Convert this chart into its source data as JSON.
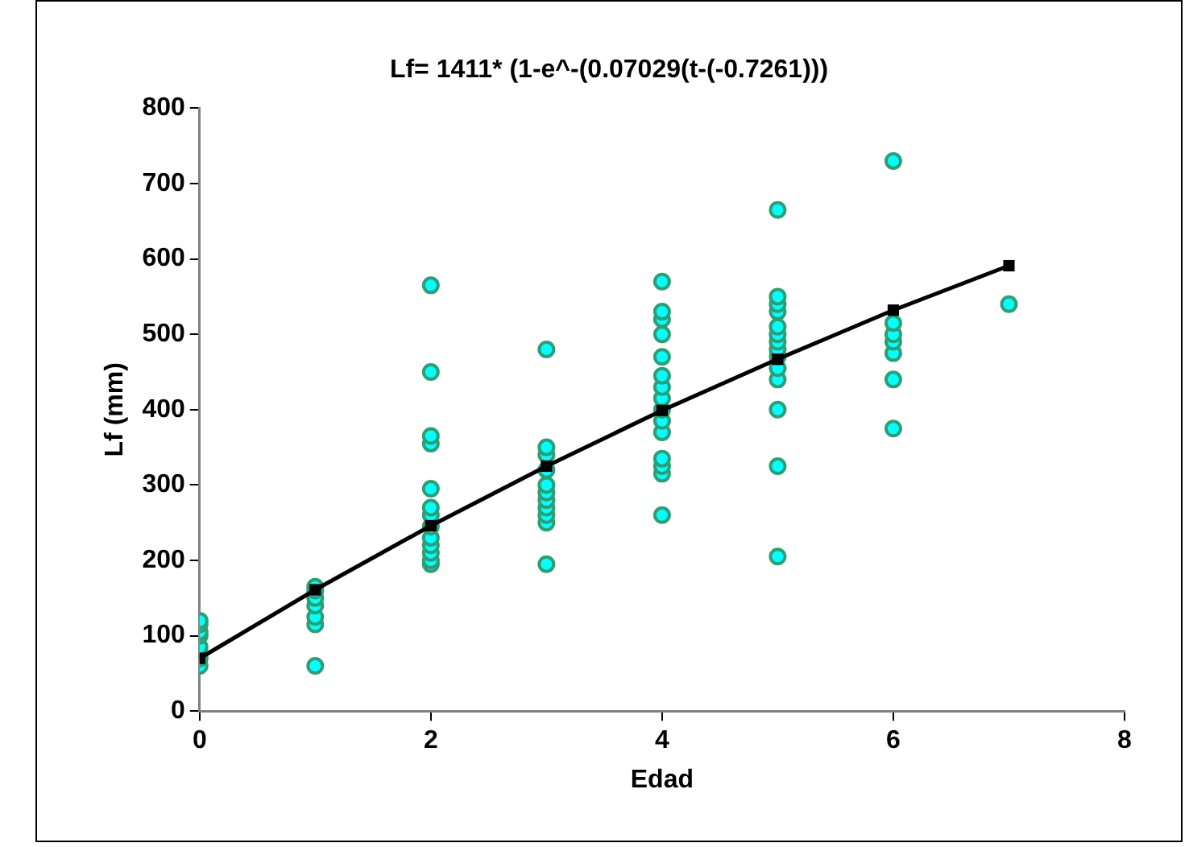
{
  "chart_data": {
    "type": "scatter",
    "title": "Lf= 1411* (1-e^-(0.07029(t-(-0.7261)))",
    "xlabel": "Edad",
    "ylabel": "Lf (mm)",
    "xlim": [
      0,
      8
    ],
    "xticks": [
      0,
      2,
      4,
      6,
      8
    ],
    "ylim": [
      0,
      800
    ],
    "yticks": [
      0,
      100,
      200,
      300,
      400,
      500,
      600,
      700,
      800
    ],
    "grid": false,
    "legend": false,
    "series": [
      {
        "type": "scatter",
        "marker": "circle",
        "color": "#00ffff",
        "x": [
          0,
          0,
          0,
          0,
          0,
          0,
          0,
          1,
          1,
          1,
          1,
          1,
          1,
          1,
          2,
          2,
          2,
          2,
          2,
          2,
          2,
          2,
          2,
          2,
          2,
          2,
          2,
          3,
          3,
          3,
          3,
          3,
          3,
          3,
          3,
          3,
          3,
          3,
          4,
          4,
          4,
          4,
          4,
          4,
          4,
          4,
          4,
          4,
          4,
          4,
          4,
          4,
          4,
          5,
          5,
          5,
          5,
          5,
          5,
          5,
          5,
          5,
          5,
          5,
          5,
          5,
          5,
          6,
          6,
          6,
          6,
          6,
          6,
          6,
          7
        ],
        "values": [
          60,
          70,
          85,
          100,
          105,
          115,
          120,
          60,
          115,
          125,
          140,
          150,
          160,
          165,
          195,
          200,
          210,
          220,
          230,
          245,
          260,
          270,
          295,
          355,
          365,
          450,
          565,
          195,
          250,
          260,
          270,
          280,
          290,
          300,
          320,
          340,
          350,
          480,
          260,
          315,
          325,
          335,
          370,
          385,
          400,
          415,
          430,
          445,
          470,
          500,
          520,
          530,
          570,
          205,
          325,
          400,
          440,
          455,
          470,
          480,
          490,
          500,
          510,
          530,
          540,
          550,
          665,
          375,
          440,
          475,
          490,
          500,
          515,
          730,
          540
        ]
      },
      {
        "type": "line",
        "marker": "square",
        "line_style": "solid",
        "color": "#000000",
        "x": [
          0,
          1,
          2,
          3,
          4,
          5,
          6,
          7
        ],
        "values": [
          70,
          161,
          246,
          325,
          399,
          467,
          532,
          591
        ]
      }
    ]
  }
}
